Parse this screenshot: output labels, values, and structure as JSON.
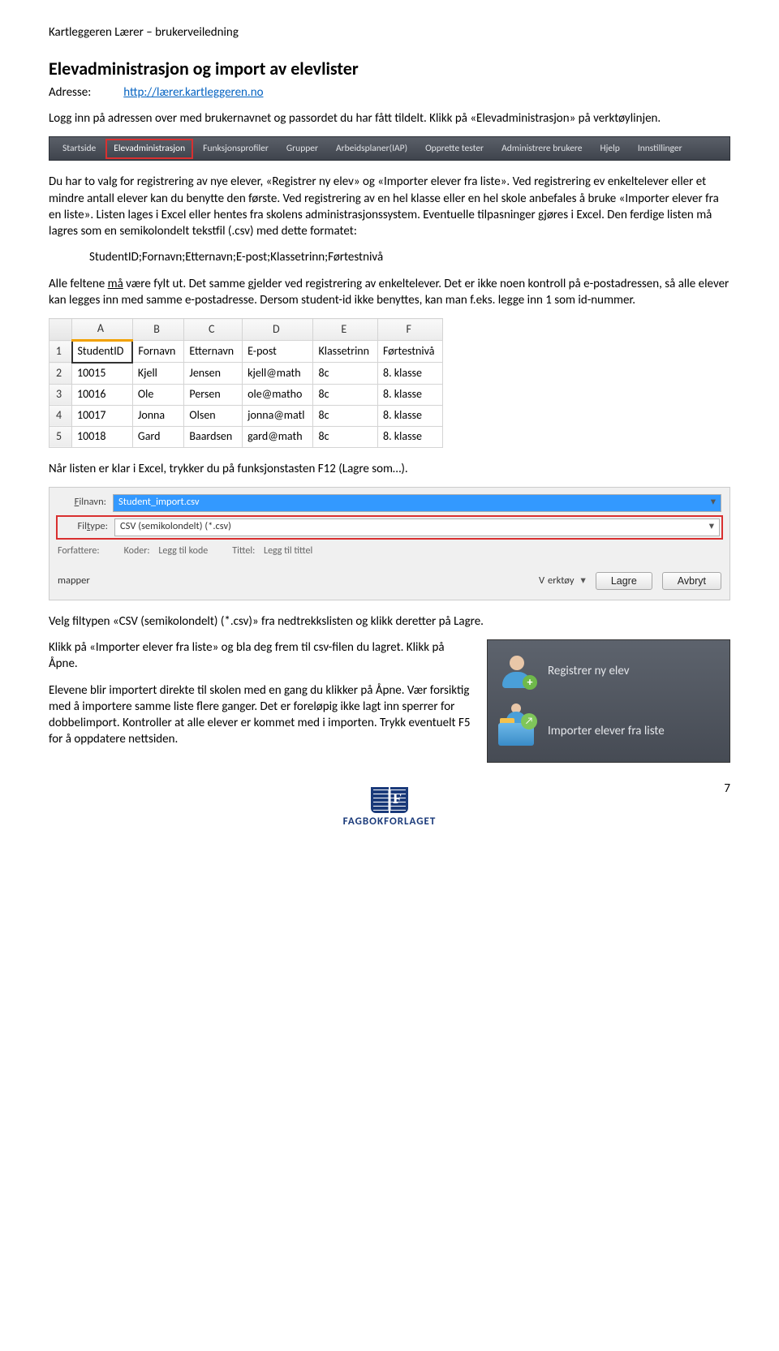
{
  "doc_header": "Kartleggeren Lærer – brukerveiledning",
  "title": "Elevadministrasjon og import av elevlister",
  "address_label": "Adresse:",
  "address_url": "http://lærer.kartleggeren.no",
  "intro_para": "Logg inn på adressen over med brukernavnet og passordet du har fått tildelt. Klikk på «Elevadministrasjon» på verktøylinjen.",
  "toolbar": {
    "items": [
      "Startside",
      "Elevadministrasjon",
      "Funksjonsprofiler",
      "Grupper",
      "Arbeidsplaner(IAP)",
      "Opprette tester",
      "Administrere brukere",
      "Hjelp",
      "Innstillinger"
    ],
    "highlight_index": 1
  },
  "para2": "Du har to valg for registrering av nye elever, «Registrer ny elev» og «Importer elever fra liste». Ved registrering ev enkeltelever eller et mindre antall elever kan du benytte den første. Ved registrering av en hel klasse eller en hel skole anbefales å bruke «Importer elever fra en liste». Listen lages i Excel eller hentes fra skolens administrasjonssystem. Eventuelle tilpasninger gjøres i Excel. Den ferdige listen må lagres som en semikolondelt tekstfil (.csv) med dette formatet:",
  "csv_format": "StudentID;Fornavn;Etternavn;E-post;Klassetrinn;Førtestnivå",
  "para3_pre": "Alle feltene ",
  "para3_u": "må",
  "para3_post": " være fylt ut. Det samme gjelder ved registrering av enkeltelever. Det er ikke noen kontroll på e-postadressen, så alle elever kan legges inn med samme e-postadresse. Dersom student-id ikke benyttes, kan man f.eks. legge inn 1 som id-nummer.",
  "excel": {
    "cols": [
      "A",
      "B",
      "C",
      "D",
      "E",
      "F"
    ],
    "headers": [
      "StudentID",
      "Fornavn",
      "Etternavn",
      "E-post",
      "Klassetrinn",
      "Førtestnivå"
    ],
    "rows": [
      [
        "10015",
        "Kjell",
        "Jensen",
        "kjell@math",
        "8c",
        "8. klasse"
      ],
      [
        "10016",
        "Ole",
        "Persen",
        "ole@matho",
        "8c",
        "8. klasse"
      ],
      [
        "10017",
        "Jonna",
        "Olsen",
        "jonna@matl",
        "8c",
        "8. klasse"
      ],
      [
        "10018",
        "Gard",
        "Baardsen",
        "gard@math",
        "8c",
        "8. klasse"
      ]
    ]
  },
  "para4": "Når listen er klar i Excel, trykker du på funksjonstasten F12 (Lagre som…).",
  "save_dialog": {
    "filnavn_label": "Filnavn:",
    "filnavn_value": "Student_import.csv",
    "filtype_label": "Filtype:",
    "filtype_value": "CSV (semikolondelt) (*.csv)",
    "forfattere": "Forfattere:",
    "koder": "Koder:",
    "koder_val": "Legg til kode",
    "tittel": "Tittel:",
    "tittel_val": "Legg til tittel",
    "mapper": "mapper",
    "verktoy": "Verktøy",
    "lagre": "Lagre",
    "avbryt": "Avbryt"
  },
  "para5": "Velg filtypen «CSV (semikolondelt) (*.csv)» fra nedtrekkslisten og klikk deretter på Lagre.",
  "para6": "Klikk på «Importer elever fra liste» og bla deg frem til csv-filen du lagret. Klikk på Åpne.",
  "para7": "Elevene blir importert direkte til skolen med en gang du klikker på Åpne. Vær forsiktig med å importere samme liste flere ganger. Det er foreløpig ikke lagt inn sperrer for dobbelimport. Kontroller at alle elever er kommet med i importen. Trykk eventuelt F5 for å oppdatere nettsiden.",
  "side_panel": {
    "item1": "Registrer ny elev",
    "item2": "Importer elever fra liste"
  },
  "page_number": "7",
  "publisher": "FAGBOKFORLAGET"
}
